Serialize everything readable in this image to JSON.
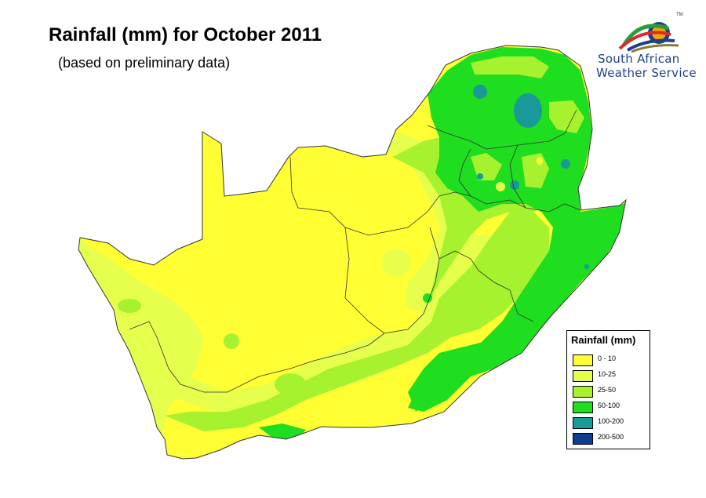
{
  "title": "Rainfall (mm) for October 2011",
  "subtitle": "(based on preliminary data)",
  "logo": {
    "line1": "South African",
    "line2": "Weather Service",
    "trademark": "TM"
  },
  "legend": {
    "title": "Rainfall (mm)",
    "items": [
      {
        "label": "0 - 10",
        "color": "#ffff33"
      },
      {
        "label": "10-25",
        "color": "#e6ff4d"
      },
      {
        "label": "25-50",
        "color": "#a6f22e"
      },
      {
        "label": "50-100",
        "color": "#1fdd1f"
      },
      {
        "label": "100-200",
        "color": "#1a9999"
      },
      {
        "label": "200-500",
        "color": "#0d3d8c"
      }
    ]
  },
  "colors": {
    "border": "#333333",
    "background": "#ffffff"
  }
}
